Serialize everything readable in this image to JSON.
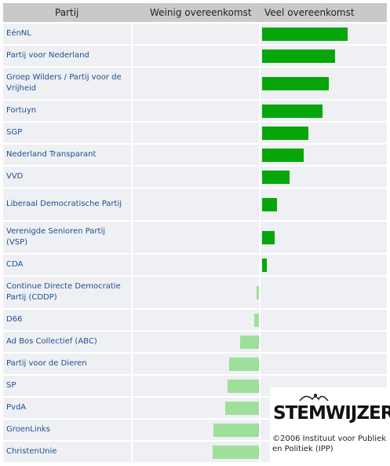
{
  "header": {
    "col_party": "Partij",
    "col_low": "Weinig overeenkomst",
    "col_high": "Veel overeenkomst"
  },
  "parties": [
    {
      "name": "EénNL",
      "agreement": 0.68
    },
    {
      "name": "Partij voor Nederland",
      "agreement": 0.58
    },
    {
      "name": "Groep Wilders / Partij voor de Vrijheid",
      "agreement": 0.53
    },
    {
      "name": "Fortuyn",
      "agreement": 0.48
    },
    {
      "name": "SGP",
      "agreement": 0.37
    },
    {
      "name": "Nederland Transparant",
      "agreement": 0.33
    },
    {
      "name": "VVD",
      "agreement": 0.22
    },
    {
      "name": "Liberaal Democratische Partij",
      "agreement": 0.12
    },
    {
      "name": "Verenigde Senioren Partij (VSP)",
      "agreement": 0.1
    },
    {
      "name": "CDA",
      "agreement": 0.04
    },
    {
      "name": "Continue Directe Democratie Partij (CDDP)",
      "agreement": -0.02
    },
    {
      "name": "D66",
      "agreement": -0.04
    },
    {
      "name": "Ad Bos Collectief (ABC)",
      "agreement": -0.15
    },
    {
      "name": "Partij voor de Dieren",
      "agreement": -0.24
    },
    {
      "name": "SP",
      "agreement": -0.25
    },
    {
      "name": "PvdA",
      "agreement": -0.27
    },
    {
      "name": "GroenLinks",
      "agreement": -0.36
    },
    {
      "name": "ChristenUnie",
      "agreement": -0.37
    }
  ],
  "logo": {
    "text": "STEMWIJZER",
    "credit": "©2006 Instituut voor Publiek en Politiek (IPP)"
  },
  "colors": {
    "high_bar": "#07a60a",
    "low_bar": "#9fdf9c",
    "row_bg": "#eef0f3",
    "header_bg": "#c9c9c9",
    "link": "#1f4e8f"
  }
}
